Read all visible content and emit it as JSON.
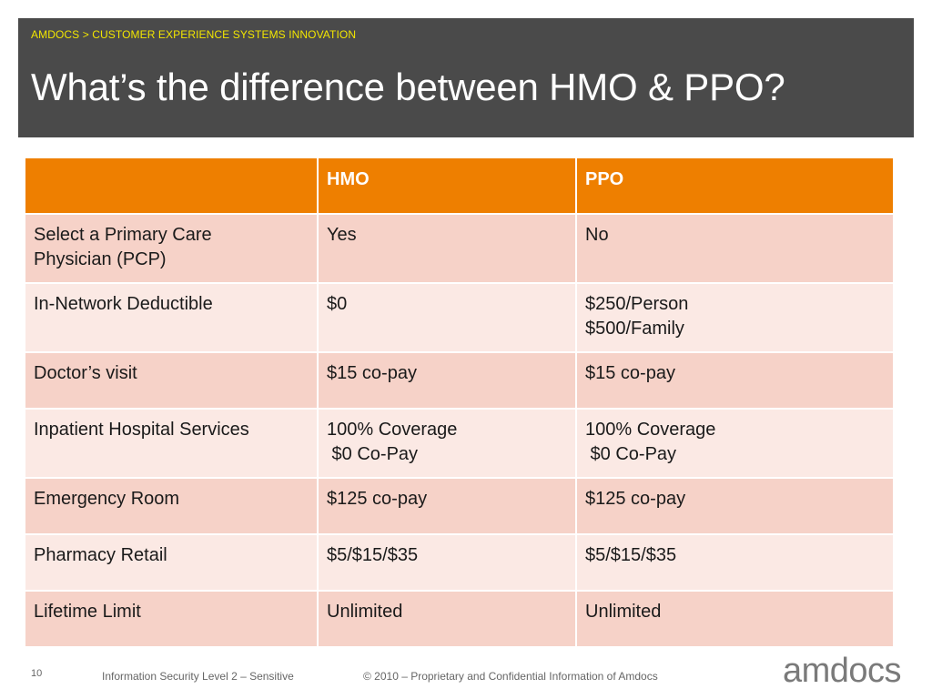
{
  "header": {
    "breadcrumb": "AMDOCS > CUSTOMER EXPERIENCE SYSTEMS INNOVATION",
    "title": "What’s the difference between HMO & PPO?"
  },
  "table": {
    "columns": [
      "",
      "HMO",
      "PPO"
    ],
    "rows": [
      {
        "label": [
          "Select a Primary Care",
          "Physician (PCP)"
        ],
        "hmo": [
          "Yes"
        ],
        "ppo": [
          "No"
        ]
      },
      {
        "label": [
          "In-Network Deductible"
        ],
        "hmo": [
          "$0"
        ],
        "ppo": [
          "$250/Person",
          "$500/Family"
        ]
      },
      {
        "label": [
          "Doctor’s visit"
        ],
        "hmo": [
          "$15 co-pay"
        ],
        "ppo": [
          "$15 co-pay"
        ]
      },
      {
        "label": [
          "Inpatient Hospital Services"
        ],
        "hmo": [
          "100% Coverage",
          " $0 Co-Pay"
        ],
        "ppo": [
          "100% Coverage",
          " $0 Co-Pay"
        ]
      },
      {
        "label": [
          "Emergency Room"
        ],
        "hmo": [
          "$125 co-pay"
        ],
        "ppo": [
          "$125 co-pay"
        ]
      },
      {
        "label": [
          "Pharmacy Retail"
        ],
        "hmo": [
          "$5/$15/$35"
        ],
        "ppo": [
          "$5/$15/$35"
        ]
      },
      {
        "label": [
          "Lifetime Limit"
        ],
        "hmo": [
          "Unlimited"
        ],
        "ppo": [
          "Unlimited"
        ]
      }
    ]
  },
  "footer": {
    "page_number": "10",
    "security": "Information Security Level 2 – Sensitive",
    "copyright": "© 2010 – Proprietary and Confidential Information of Amdocs",
    "logo_text": "amdocs"
  },
  "colors": {
    "header_bg": "#4a4a4a",
    "breadcrumb": "#f2e600",
    "table_header": "#ee7f00",
    "row_dark": "#f6d2c8",
    "row_light": "#fbe9e4"
  }
}
